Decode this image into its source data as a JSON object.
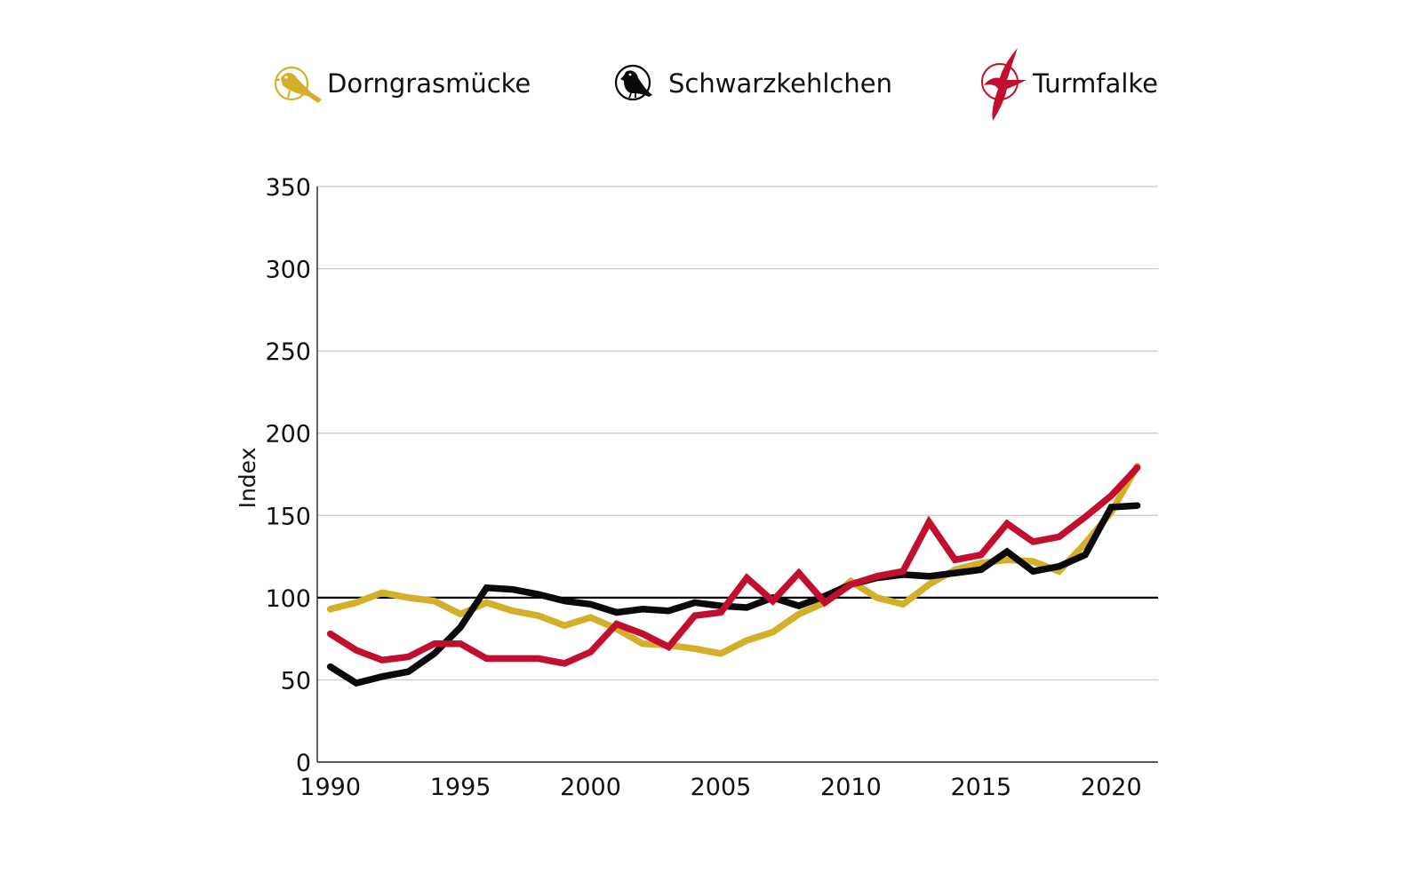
{
  "chart_data": {
    "type": "line",
    "title": "",
    "xlabel": "",
    "ylabel": "Index",
    "xlim": [
      1989.5,
      2021.8
    ],
    "ylim": [
      0,
      350
    ],
    "xticks": [
      1990,
      1995,
      2000,
      2005,
      2010,
      2015,
      2020
    ],
    "yticks": [
      0,
      50,
      100,
      150,
      200,
      250,
      300,
      350
    ],
    "reference_line": 100,
    "grid": true,
    "legend_position": "top",
    "x": [
      1990,
      1991,
      1992,
      1993,
      1994,
      1995,
      1996,
      1997,
      1998,
      1999,
      2000,
      2001,
      2002,
      2003,
      2004,
      2005,
      2006,
      2007,
      2008,
      2009,
      2010,
      2011,
      2012,
      2013,
      2014,
      2015,
      2016,
      2017,
      2018,
      2019,
      2020,
      2021
    ],
    "series": [
      {
        "name": "Dorngrasmücke",
        "color": "#d4af2a",
        "icon": "dorngrasmuecke-icon",
        "values": [
          93,
          97,
          103,
          100,
          98,
          90,
          97,
          92,
          89,
          83,
          88,
          81,
          72,
          71,
          69,
          66,
          74,
          79,
          90,
          97,
          110,
          100,
          96,
          108,
          117,
          121,
          123,
          122,
          116,
          133,
          152,
          180
        ]
      },
      {
        "name": "Schwarzkehlchen",
        "color": "#0a0a0a",
        "icon": "schwarzkehlchen-icon",
        "values": [
          58,
          48,
          52,
          55,
          66,
          82,
          106,
          105,
          102,
          98,
          96,
          91,
          93,
          92,
          97,
          95,
          94,
          100,
          95,
          101,
          108,
          112,
          114,
          113,
          115,
          117,
          128,
          116,
          119,
          126,
          155,
          156
        ]
      },
      {
        "name": "Turmfalke",
        "color": "#c20e2f",
        "icon": "turmfalke-icon",
        "values": [
          78,
          68,
          62,
          64,
          72,
          72,
          63,
          63,
          63,
          60,
          67,
          84,
          78,
          70,
          89,
          91,
          112,
          98,
          115,
          97,
          108,
          113,
          116,
          146,
          123,
          126,
          145,
          134,
          137,
          149,
          162,
          179
        ]
      }
    ]
  }
}
